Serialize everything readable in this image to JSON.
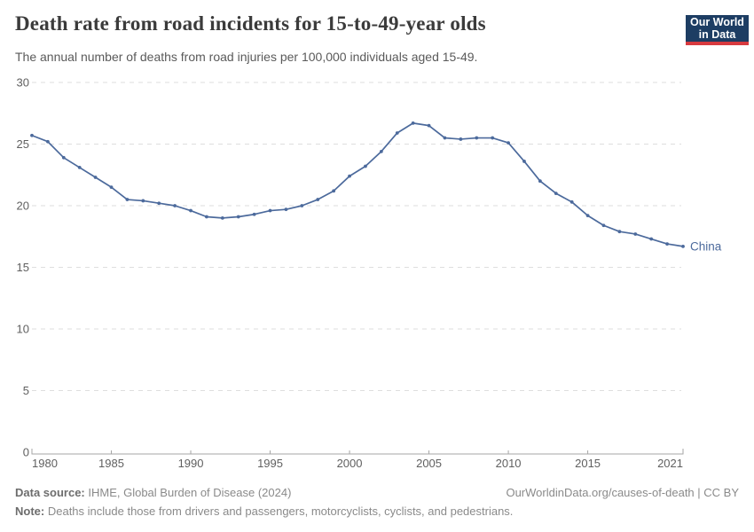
{
  "header": {
    "title": "Death rate from road incidents for 15-to-49-year olds",
    "subtitle": "The annual number of deaths from road injuries per 100,000 individuals aged 15-49.",
    "logo": {
      "line1": "Our World",
      "line2": "in Data"
    }
  },
  "footer": {
    "source_label": "Data source:",
    "source_text": "IHME, Global Burden of Disease (2024)",
    "credit": "OurWorldinData.org/causes-of-death | CC BY",
    "note_label": "Note:",
    "note_text": "Deaths include those from drivers and passengers, motorcyclists, cyclists, and pedestrians."
  },
  "colors": {
    "series_blue": "#4C6A9C",
    "logo_navy": "#1d3d63",
    "logo_red": "#d73a3f",
    "grid": "#dedede",
    "axis": "#a5a5a5",
    "tick_label": "#606060",
    "title_text": "#3b3b3b"
  },
  "chart_data": {
    "type": "line",
    "title": "Death rate from road incidents for 15-to-49-year olds",
    "subtitle": "The annual number of deaths from road injuries per 100,000 individuals aged 15-49.",
    "xlabel": "",
    "ylabel": "",
    "xlim": [
      1980,
      2021
    ],
    "ylim": [
      0,
      30
    ],
    "x_ticks": [
      1980,
      1985,
      1990,
      1995,
      2000,
      2005,
      2010,
      2015,
      2021
    ],
    "y_ticks": [
      0,
      5,
      10,
      15,
      20,
      25,
      30
    ],
    "grid": "horizontal-dashed",
    "legend_position": "end-of-line",
    "series": [
      {
        "name": "China",
        "color": "#4C6A9C",
        "x": [
          1980,
          1981,
          1982,
          1983,
          1984,
          1985,
          1986,
          1987,
          1988,
          1989,
          1990,
          1991,
          1992,
          1993,
          1994,
          1995,
          1996,
          1997,
          1998,
          1999,
          2000,
          2001,
          2002,
          2003,
          2004,
          2005,
          2006,
          2007,
          2008,
          2009,
          2010,
          2011,
          2012,
          2013,
          2014,
          2015,
          2016,
          2017,
          2018,
          2019,
          2020,
          2021
        ],
        "values": [
          25.7,
          25.2,
          23.9,
          23.1,
          22.3,
          21.5,
          20.5,
          20.4,
          20.2,
          20.0,
          19.6,
          19.1,
          19.0,
          19.1,
          19.3,
          19.6,
          19.7,
          20.0,
          20.5,
          21.2,
          22.4,
          23.2,
          24.4,
          25.9,
          26.7,
          26.5,
          25.5,
          25.4,
          25.5,
          25.5,
          25.1,
          23.6,
          22.0,
          21.0,
          20.3,
          19.2,
          18.4,
          17.9,
          17.7,
          17.3,
          16.9,
          16.7
        ]
      }
    ]
  }
}
